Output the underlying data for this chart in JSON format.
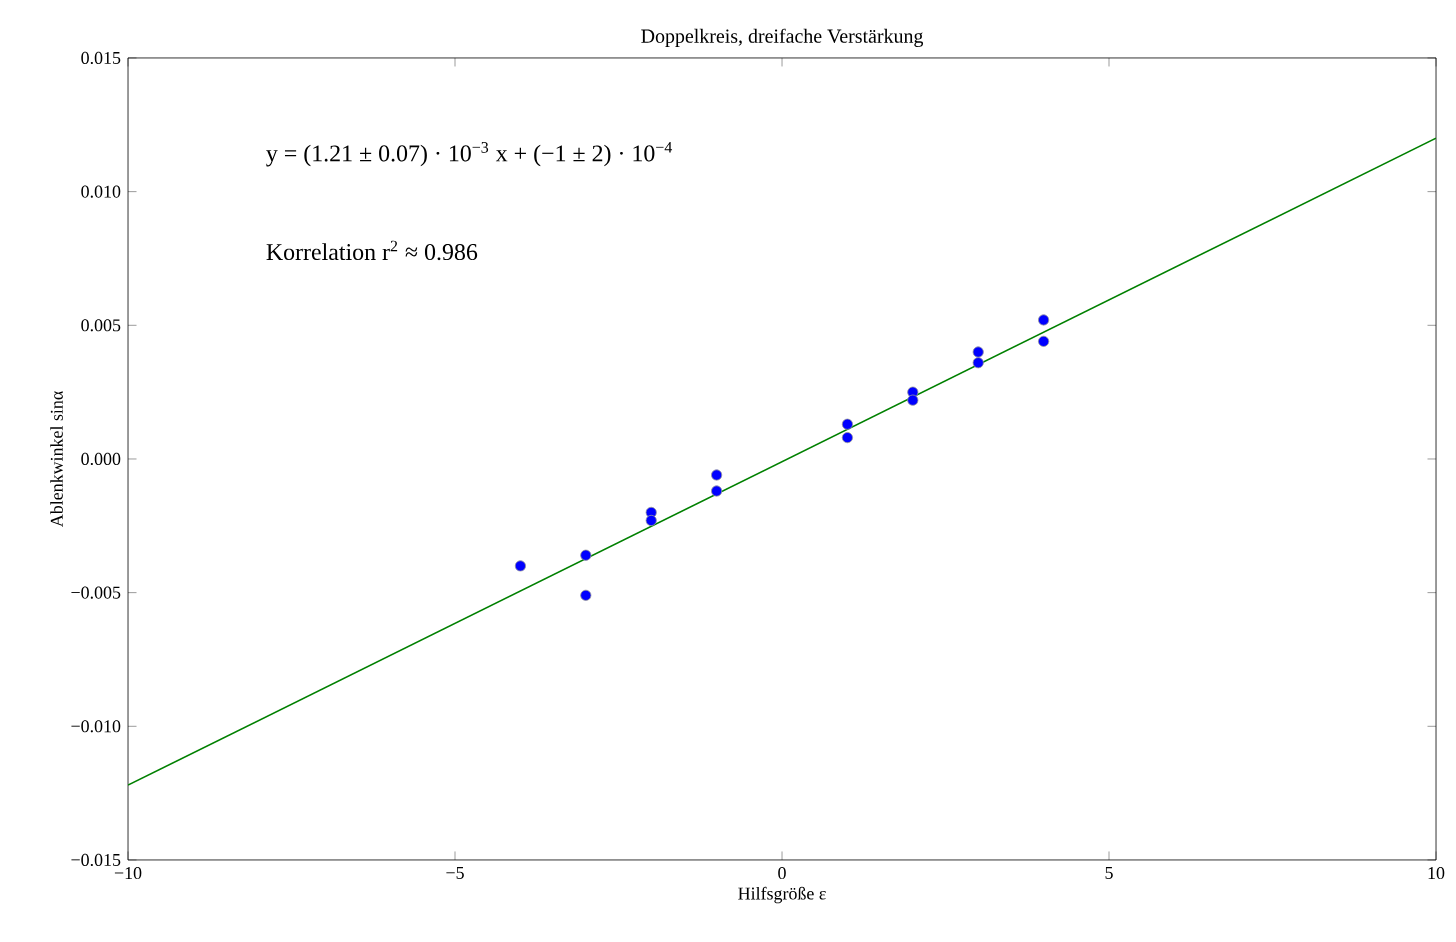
{
  "chart_data": {
    "type": "scatter",
    "title": "Doppelkreis, dreifache Verstärkung",
    "xlabel": "Hilfsgröße  ε",
    "ylabel": "Ablenkwinkel sinα",
    "annotations": [
      "y = (1.21 ± 0.07) · 10$^{−3}$  x + (−1 ± 2) · 10$^{−4}$",
      "Korrelation r$^{2}$ ≈ 0.986"
    ],
    "series": [
      {
        "color": "#0000ff",
        "marker": "circle",
        "x": [
          -4,
          -3,
          -3,
          -2,
          -2,
          -1,
          -1,
          1,
          1,
          2,
          2,
          3,
          3,
          4,
          4
        ],
        "values": [
          -0.004,
          -0.0036,
          -0.0051,
          -0.002,
          -0.0023,
          -0.0006,
          -0.0012,
          0.0013,
          0.0008,
          0.0025,
          0.0022,
          0.004,
          0.0036,
          0.0052,
          0.0044
        ]
      },
      {
        "type": "line",
        "color": "#008000",
        "marker": "none",
        "x": [
          -10,
          10
        ],
        "values": [
          -0.0122,
          0.012
        ]
      }
    ],
    "xlim": [
      -10,
      10
    ],
    "ylim": [
      -0.015,
      0.015
    ],
    "xticks": [
      {
        "value": -10,
        "label": "−10"
      },
      {
        "value": -5,
        "label": "−5"
      },
      0,
      5,
      10
    ],
    "yticks": [
      {
        "value": -0.015,
        "label": "−0.015"
      },
      {
        "value": -0.01,
        "label": "−0.010"
      },
      {
        "value": -0.005,
        "label": "−0.005"
      },
      {
        "value": 0,
        "label": "0.000"
      },
      {
        "value": 0.005,
        "label": "0.005"
      },
      {
        "value": 0.01,
        "label": "0.010"
      },
      0.015
    ],
    "grid": false
  }
}
